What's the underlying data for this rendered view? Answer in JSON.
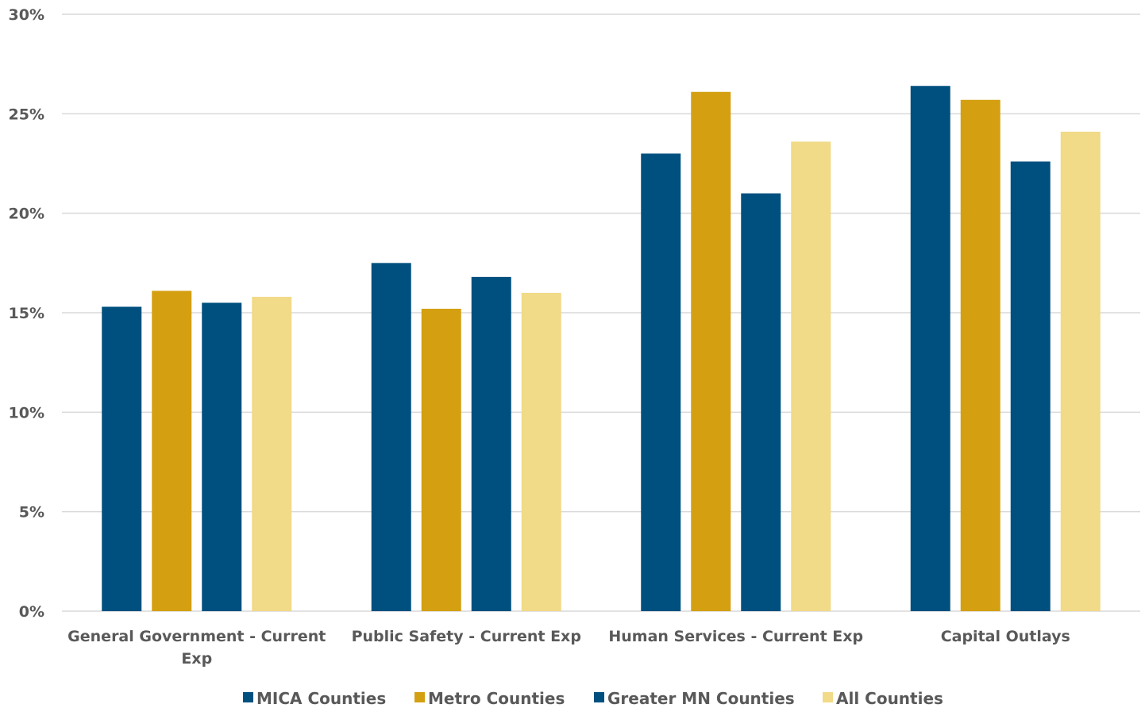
{
  "chart_data": {
    "type": "bar",
    "title": "",
    "xlabel": "",
    "ylabel": "",
    "ylim": [
      0,
      30
    ],
    "yticks": [
      0,
      5,
      10,
      15,
      20,
      25,
      30
    ],
    "ytick_labels": [
      "0%",
      "5%",
      "10%",
      "15%",
      "20%",
      "25%",
      "30%"
    ],
    "grid": true,
    "legend_position": "bottom",
    "categories": [
      [
        "General Government - Current",
        "Exp"
      ],
      [
        "Public Safety - Current Exp"
      ],
      [
        "Human Services - Current Exp"
      ],
      [
        "Capital Outlays"
      ]
    ],
    "series": [
      {
        "name": "MICA Counties",
        "color": "#00507f",
        "values": [
          15.3,
          17.5,
          23.0,
          26.4
        ]
      },
      {
        "name": "Metro Counties",
        "color": "#d4a012",
        "values": [
          16.1,
          15.2,
          26.1,
          25.7
        ]
      },
      {
        "name": "Greater MN Counties",
        "color": "#00507f",
        "values": [
          15.5,
          16.8,
          21.0,
          22.6
        ]
      },
      {
        "name": "All Counties",
        "color": "#f1da88",
        "values": [
          15.8,
          16.0,
          23.6,
          24.1
        ]
      }
    ]
  }
}
